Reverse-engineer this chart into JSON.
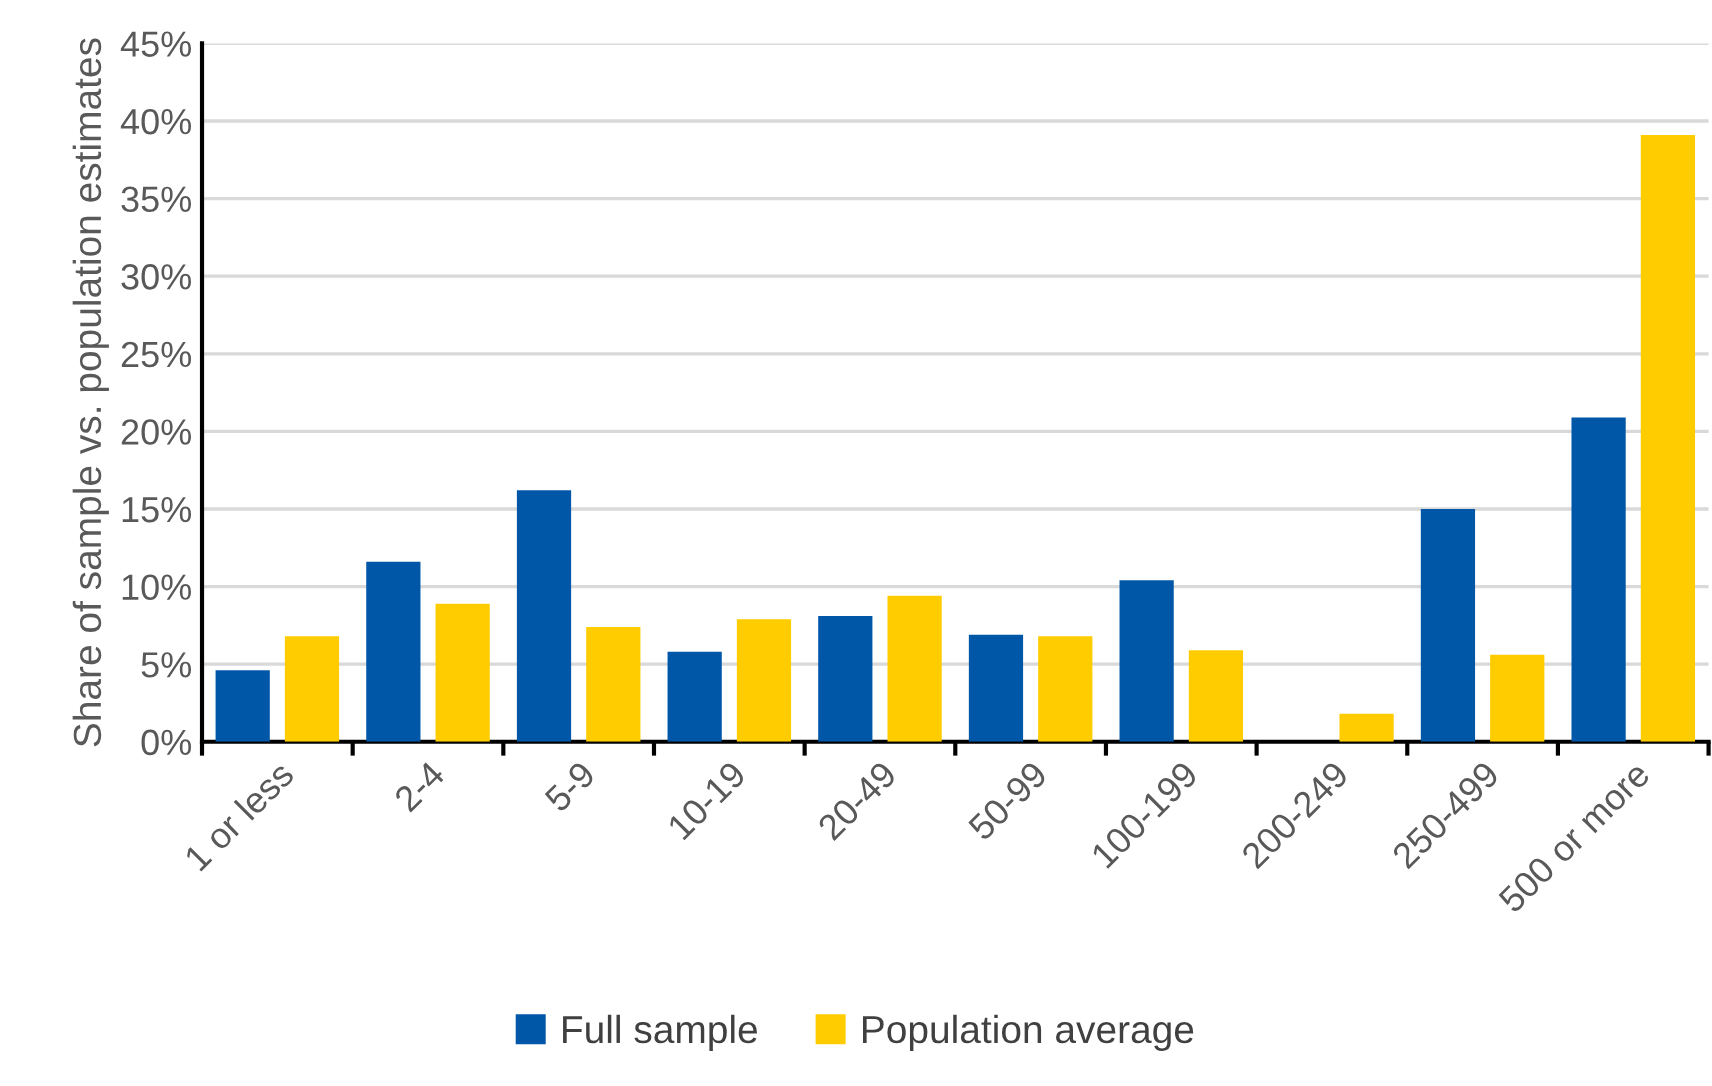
{
  "chart_data": {
    "type": "bar",
    "ylabel": "Share of sample vs. population estimates",
    "categories": [
      "1 or less",
      "2-4",
      "5-9",
      "10-19",
      "20-49",
      "50-99",
      "100-199",
      "200-249",
      "250-499",
      "500 or more"
    ],
    "series": [
      {
        "name": "Full sample",
        "color": "#0057a8",
        "values": [
          4.6,
          11.6,
          16.2,
          5.8,
          8.1,
          6.9,
          10.4,
          0,
          15.0,
          20.9
        ]
      },
      {
        "name": "Population average",
        "color": "#ffcc00",
        "values": [
          6.8,
          8.9,
          7.4,
          7.9,
          9.4,
          6.8,
          5.9,
          1.8,
          5.6,
          39.1
        ]
      }
    ],
    "ylim": [
      0,
      45
    ],
    "yticks": [
      {
        "value": 0,
        "label": "0%"
      },
      {
        "value": 5,
        "label": "5%"
      },
      {
        "value": 10,
        "label": "10%"
      },
      {
        "value": 15,
        "label": "15%"
      },
      {
        "value": 20,
        "label": "20%"
      },
      {
        "value": 25,
        "label": "25%"
      },
      {
        "value": 30,
        "label": "30%"
      },
      {
        "value": 35,
        "label": "35%"
      },
      {
        "value": 40,
        "label": "40%"
      },
      {
        "value": 45,
        "label": "45%"
      }
    ],
    "grid": "y",
    "legend": "bottom"
  }
}
